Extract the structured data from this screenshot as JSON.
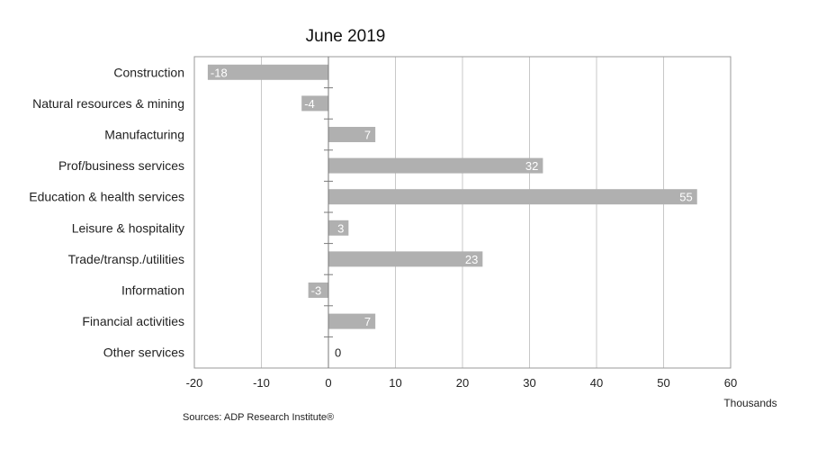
{
  "chart_data": {
    "type": "bar",
    "orientation": "horizontal",
    "title": "June 2019",
    "categories": [
      "Construction",
      "Natural resources & mining",
      "Manufacturing",
      "Prof/business services",
      "Education & health services",
      "Leisure & hospitality",
      "Trade/transp./utilities",
      "Information",
      "Financial activities",
      "Other services"
    ],
    "values": [
      -18,
      -4,
      7,
      32,
      55,
      3,
      23,
      -3,
      7,
      0
    ],
    "xlim": [
      -20,
      60
    ],
    "xticks": [
      -20,
      -10,
      0,
      10,
      20,
      30,
      40,
      50,
      60
    ],
    "xlabel": "Thousands",
    "grid": true,
    "bar_color": "#b0b0b0",
    "source": "Sources: ADP Research Institute®"
  }
}
